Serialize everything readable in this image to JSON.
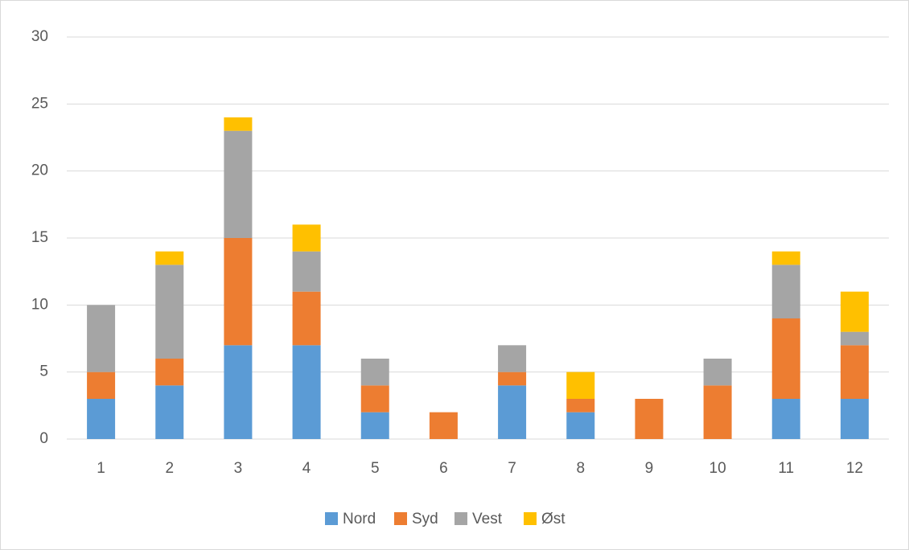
{
  "chart_data": {
    "type": "stacked_bar",
    "categories": [
      "1",
      "2",
      "3",
      "4",
      "5",
      "6",
      "7",
      "8",
      "9",
      "10",
      "11",
      "12"
    ],
    "series": [
      {
        "name": "Nord",
        "color": "#5b9bd5",
        "values": [
          3,
          4,
          7,
          7,
          2,
          0,
          4,
          2,
          0,
          0,
          3,
          3
        ]
      },
      {
        "name": "Syd",
        "color": "#ed7d31",
        "values": [
          2,
          2,
          8,
          4,
          2,
          2,
          1,
          1,
          3,
          4,
          6,
          4
        ]
      },
      {
        "name": "Vest",
        "color": "#a5a5a5",
        "values": [
          5,
          7,
          8,
          3,
          2,
          0,
          2,
          0,
          0,
          2,
          4,
          1
        ]
      },
      {
        "name": "Øst",
        "color": "#ffc000",
        "values": [
          0,
          1,
          1,
          2,
          0,
          0,
          0,
          2,
          0,
          0,
          1,
          3
        ]
      }
    ],
    "ylim": [
      0,
      30
    ],
    "yticks": [
      0,
      5,
      10,
      15,
      20,
      25,
      30
    ],
    "grid": true,
    "legend": "bottom"
  }
}
